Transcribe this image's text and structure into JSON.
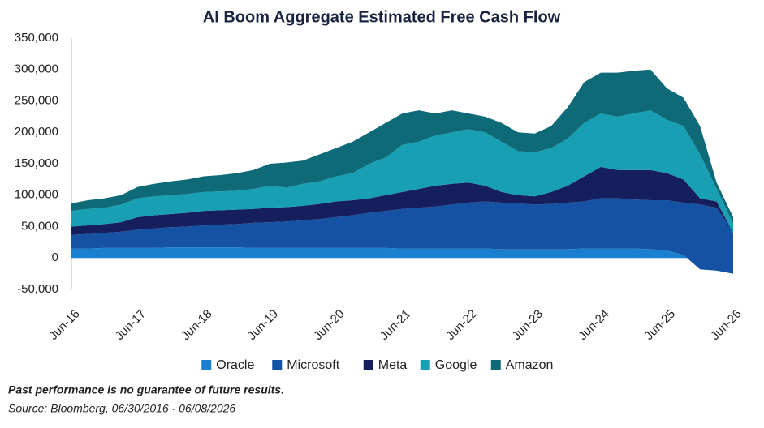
{
  "chart_data": {
    "type": "stacked_area",
    "title": "AI Boom Aggregate Estimated Free Cash Flow",
    "categories": [
      "Jun-16",
      null,
      null,
      null,
      "Jun-17",
      null,
      null,
      null,
      "Jun-18",
      null,
      null,
      null,
      "Jun-19",
      null,
      null,
      null,
      "Jun-20",
      null,
      null,
      null,
      "Jun-21",
      null,
      null,
      null,
      "Jun-22",
      null,
      null,
      null,
      "Jun-23",
      null,
      null,
      null,
      "Jun-24",
      null,
      null,
      null,
      "Jun-25",
      null,
      null,
      null,
      "Jun-26"
    ],
    "series": [
      {
        "name": "Oracle",
        "color": "#1b7fcf",
        "values": [
          15000,
          15000,
          16000,
          16000,
          16000,
          16000,
          17000,
          17000,
          17000,
          17000,
          17000,
          16000,
          16000,
          16000,
          16000,
          16000,
          16000,
          16000,
          16000,
          16000,
          15000,
          15000,
          15000,
          15000,
          15000,
          15000,
          14000,
          14000,
          14000,
          14000,
          14000,
          15000,
          15000,
          15000,
          15000,
          14000,
          12000,
          5000,
          -18000,
          -20000,
          -25000
        ]
      },
      {
        "name": "Microsoft",
        "color": "#1652a3",
        "values": [
          22000,
          23000,
          24000,
          26000,
          29000,
          31000,
          32000,
          33000,
          35000,
          36000,
          37000,
          40000,
          41000,
          42000,
          44000,
          46000,
          49000,
          52000,
          56000,
          59000,
          63000,
          65000,
          67000,
          70000,
          73000,
          75000,
          74000,
          73000,
          71000,
          72000,
          74000,
          75000,
          80000,
          80000,
          78000,
          78000,
          80000,
          83000,
          103000,
          100000,
          65000
        ]
      },
      {
        "name": "Meta",
        "color": "#151f5e",
        "values": [
          13000,
          14000,
          14000,
          15000,
          20000,
          21000,
          21000,
          22000,
          23000,
          23000,
          23000,
          22000,
          23000,
          23000,
          23000,
          24000,
          25000,
          24000,
          23000,
          25000,
          27000,
          30000,
          33000,
          33000,
          32000,
          25000,
          17000,
          13000,
          13000,
          19000,
          27000,
          40000,
          50000,
          45000,
          47000,
          48000,
          43000,
          37000,
          10000,
          10000,
          0
        ]
      },
      {
        "name": "Google",
        "color": "#189fb3",
        "values": [
          25000,
          26000,
          26000,
          28000,
          30000,
          30000,
          30000,
          30000,
          30000,
          30000,
          30000,
          32000,
          35000,
          31000,
          35000,
          36000,
          40000,
          43000,
          55000,
          60000,
          75000,
          75000,
          80000,
          82000,
          85000,
          85000,
          80000,
          70000,
          70000,
          70000,
          75000,
          85000,
          85000,
          85000,
          90000,
          95000,
          85000,
          85000,
          70000,
          20000,
          15000
        ]
      },
      {
        "name": "Amazon",
        "color": "#0f6a78",
        "values": [
          12000,
          14000,
          15000,
          15000,
          18000,
          20000,
          22000,
          23000,
          25000,
          26000,
          28000,
          30000,
          35000,
          40000,
          37000,
          43000,
          45000,
          50000,
          50000,
          55000,
          50000,
          50000,
          35000,
          35000,
          25000,
          25000,
          30000,
          30000,
          30000,
          35000,
          50000,
          65000,
          65000,
          70000,
          68000,
          65000,
          50000,
          45000,
          45000,
          10000,
          10000
        ]
      }
    ],
    "ylim": [
      -50000,
      350000
    ],
    "yticks": [
      {
        "value": -50000,
        "label": "-50,000"
      },
      0,
      {
        "value": 50000,
        "label": "50,000"
      },
      {
        "value": 100000,
        "label": "100,000"
      },
      {
        "value": 150000,
        "label": "150,000"
      },
      {
        "value": 200000,
        "label": "200,000"
      },
      {
        "value": 250000,
        "label": "250,000"
      },
      {
        "value": 300000,
        "label": "300,000"
      },
      {
        "value": 350000,
        "label": "350,000"
      }
    ],
    "legend": "bottom",
    "footnote": "Past performance is no guarantee of future results.",
    "source": "Source: Bloomberg, 06/30/2016 - 06/08/2026"
  }
}
